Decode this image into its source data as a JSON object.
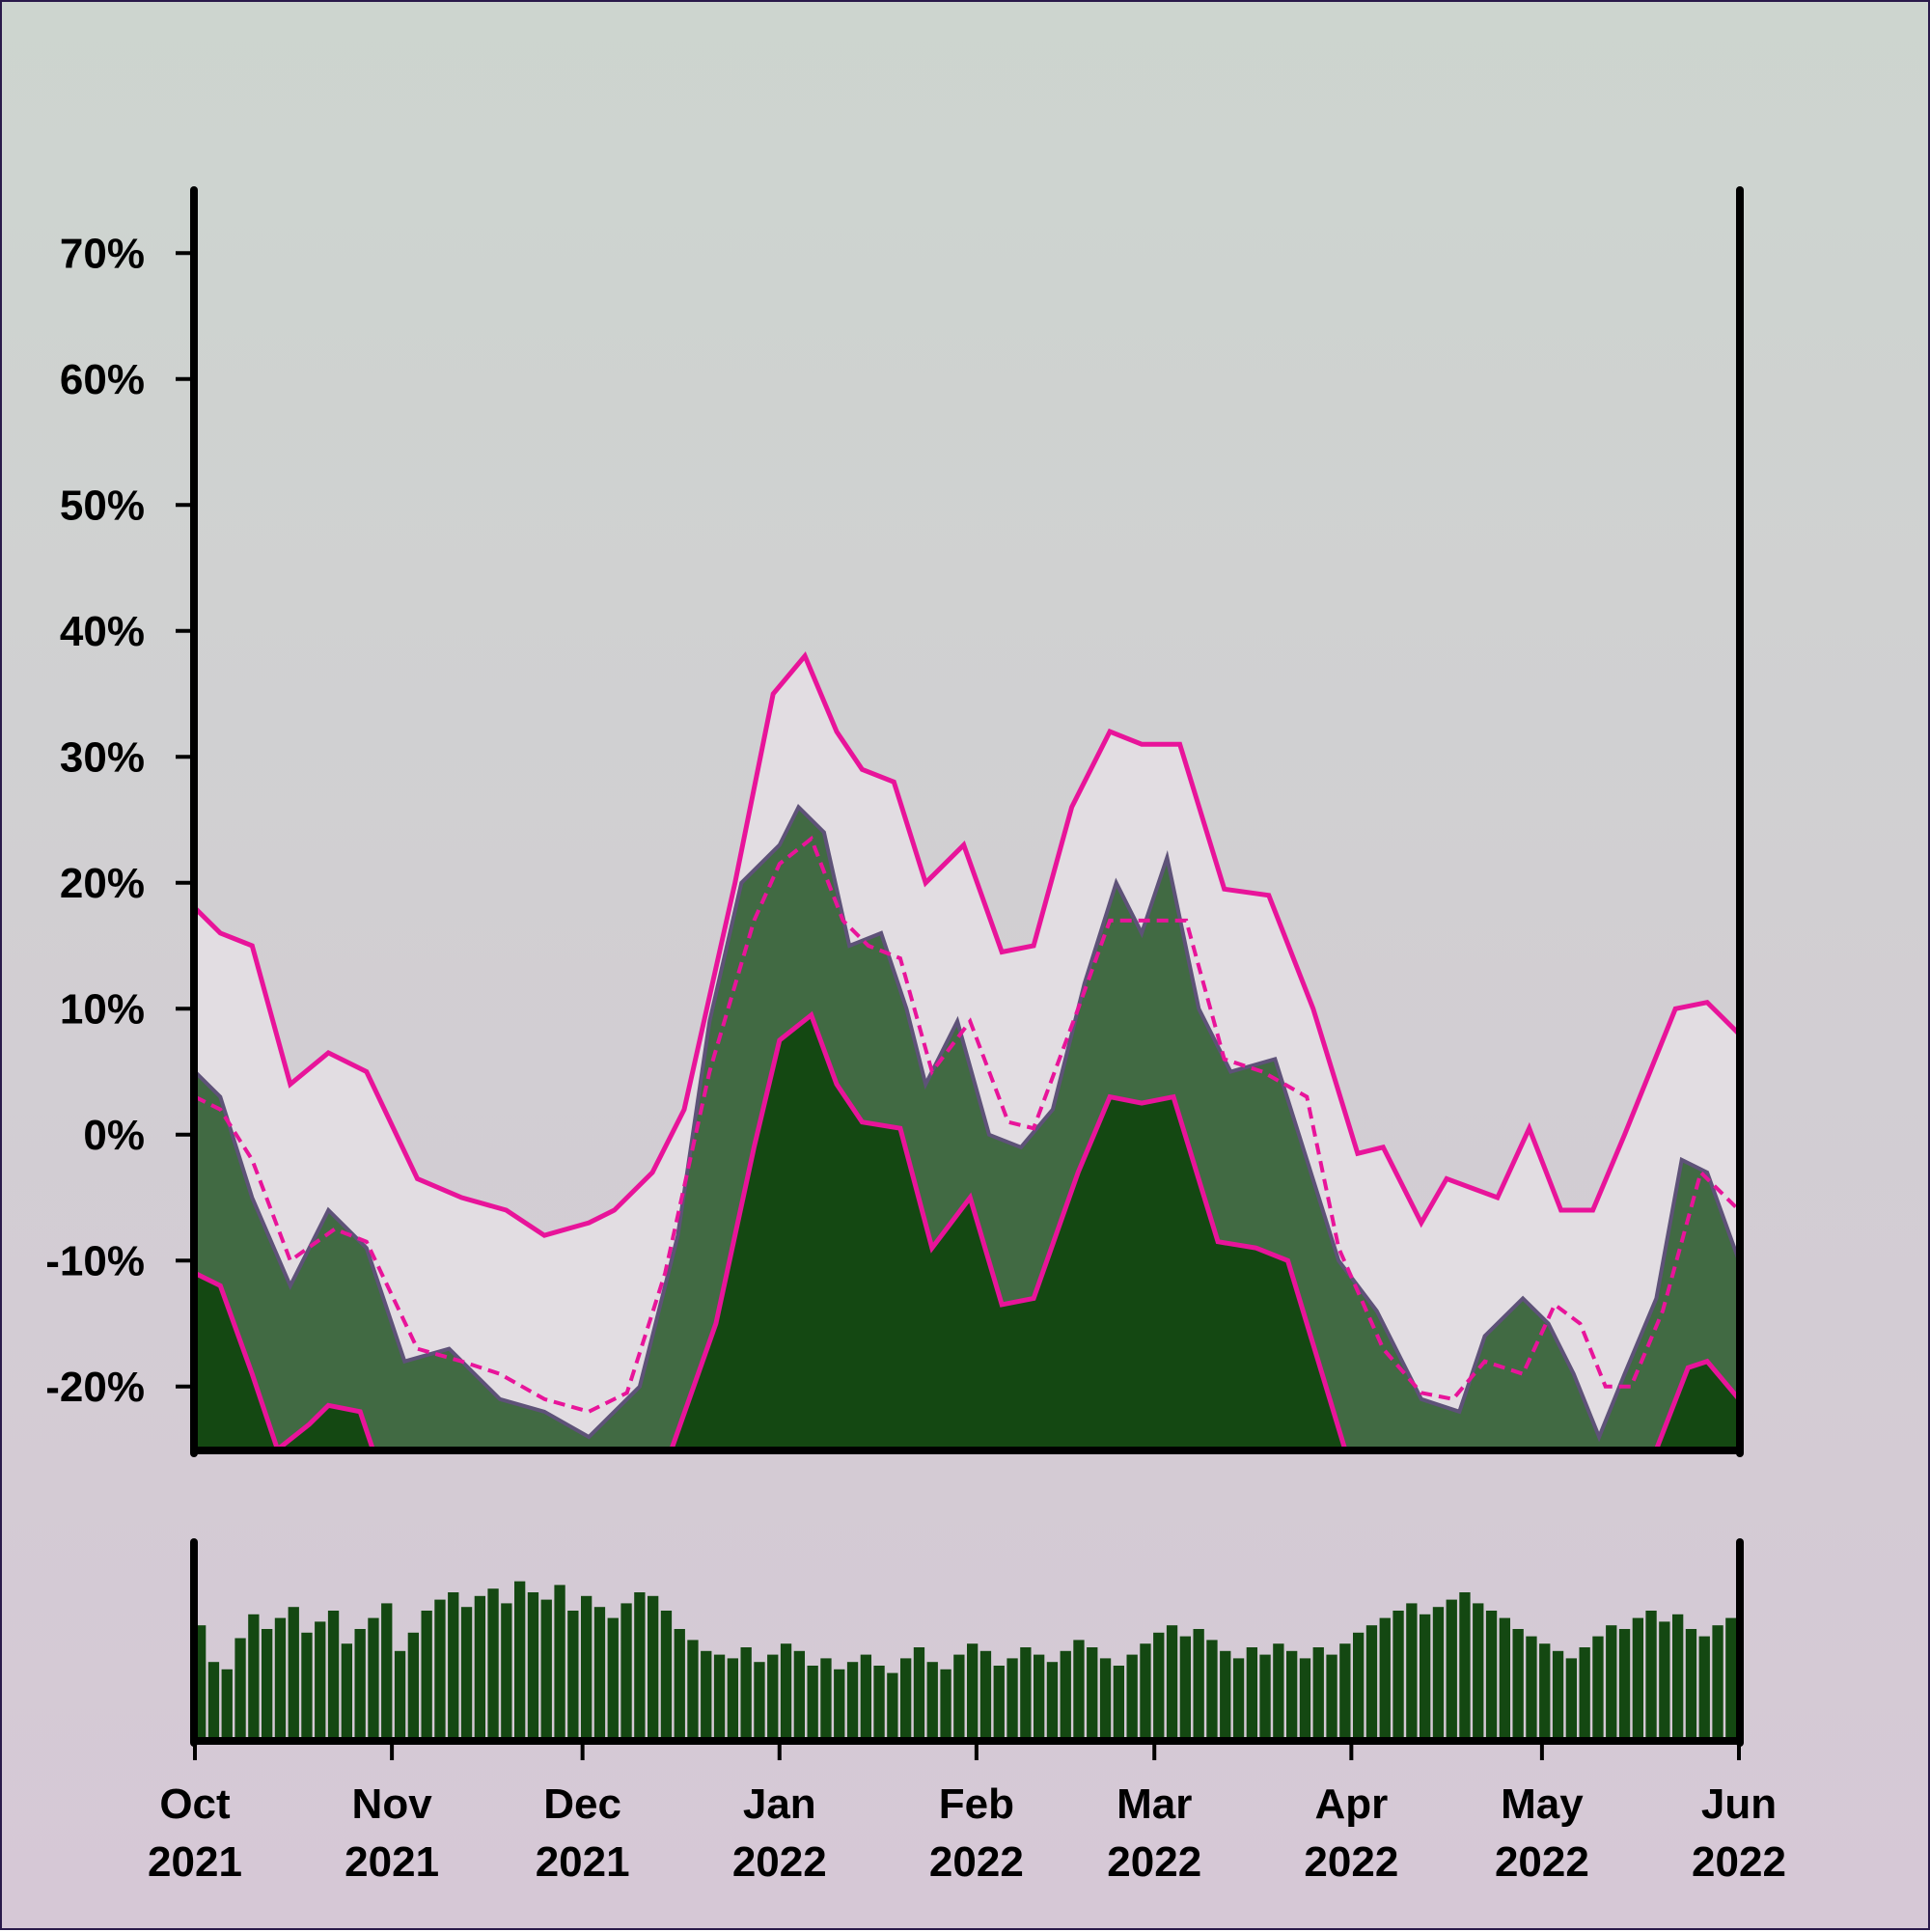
{
  "colors": {
    "band_fill": "#e2dde2",
    "area_fill": "#416a43",
    "price_line": "#5e5278",
    "dark_fill": "#144812",
    "band_line": "#e8149a",
    "volume_bar": "#144812",
    "axis": "#000000"
  },
  "chart_data": {
    "type": "area",
    "title": "",
    "xlabel": "",
    "ylabel": "",
    "x_range": [
      "2021-10-01",
      "2022-06-01"
    ],
    "ylim": [
      -25,
      75
    ],
    "y_ticks": [
      {
        "value": 70,
        "label": "70%"
      },
      {
        "value": 60,
        "label": "60%"
      },
      {
        "value": 50,
        "label": "50%"
      },
      {
        "value": 40,
        "label": "40%"
      },
      {
        "value": 30,
        "label": "30%"
      },
      {
        "value": 20,
        "label": "20%"
      },
      {
        "value": 10,
        "label": "10%"
      },
      {
        "value": 0,
        "label": "0%"
      },
      {
        "value": -10,
        "label": "-10%"
      },
      {
        "value": -20,
        "label": "-20%"
      }
    ],
    "x_ticks": [
      {
        "date": "2021-10-01",
        "month": "Oct",
        "year": "2021"
      },
      {
        "date": "2021-11-01",
        "month": "Nov",
        "year": "2021"
      },
      {
        "date": "2021-12-01",
        "month": "Dec",
        "year": "2021"
      },
      {
        "date": "2022-01-01",
        "month": "Jan",
        "year": "2022"
      },
      {
        "date": "2022-02-01",
        "month": "Feb",
        "year": "2022"
      },
      {
        "date": "2022-03-01",
        "month": "Mar",
        "year": "2022"
      },
      {
        "date": "2022-04-01",
        "month": "Apr",
        "year": "2022"
      },
      {
        "date": "2022-05-01",
        "month": "May",
        "year": "2022"
      },
      {
        "date": "2022-06-01",
        "month": "Jun",
        "year": "2022"
      }
    ],
    "series": [
      {
        "role": "price",
        "points": [
          [
            "2021-10-01",
            5
          ],
          [
            "2021-10-05",
            3
          ],
          [
            "2021-10-10",
            -5
          ],
          [
            "2021-10-16",
            -12
          ],
          [
            "2021-10-22",
            -6
          ],
          [
            "2021-10-28",
            -9
          ],
          [
            "2021-11-03",
            -18
          ],
          [
            "2021-11-10",
            -17
          ],
          [
            "2021-11-18",
            -21
          ],
          [
            "2021-11-25",
            -22
          ],
          [
            "2021-12-02",
            -24
          ],
          [
            "2021-12-10",
            -20
          ],
          [
            "2021-12-16",
            -8
          ],
          [
            "2021-12-21",
            9
          ],
          [
            "2021-12-26",
            20
          ],
          [
            "2022-01-01",
            23
          ],
          [
            "2022-01-04",
            26
          ],
          [
            "2022-01-08",
            24
          ],
          [
            "2022-01-12",
            15
          ],
          [
            "2022-01-17",
            16
          ],
          [
            "2022-01-21",
            10
          ],
          [
            "2022-01-24",
            4
          ],
          [
            "2022-01-29",
            9
          ],
          [
            "2022-02-03",
            0
          ],
          [
            "2022-02-08",
            -1
          ],
          [
            "2022-02-13",
            2
          ],
          [
            "2022-02-18",
            12
          ],
          [
            "2022-02-23",
            20
          ],
          [
            "2022-02-27",
            16
          ],
          [
            "2022-03-03",
            22
          ],
          [
            "2022-03-08",
            10
          ],
          [
            "2022-03-13",
            5
          ],
          [
            "2022-03-20",
            6
          ],
          [
            "2022-03-25",
            -2
          ],
          [
            "2022-03-30",
            -10
          ],
          [
            "2022-04-05",
            -14
          ],
          [
            "2022-04-12",
            -21
          ],
          [
            "2022-04-18",
            -22
          ],
          [
            "2022-04-22",
            -16
          ],
          [
            "2022-04-28",
            -13
          ],
          [
            "2022-05-02",
            -15
          ],
          [
            "2022-05-06",
            -19
          ],
          [
            "2022-05-10",
            -24
          ],
          [
            "2022-05-14",
            -19
          ],
          [
            "2022-05-19",
            -13
          ],
          [
            "2022-05-23",
            -2
          ],
          [
            "2022-05-27",
            -3
          ],
          [
            "2022-06-01",
            -10
          ]
        ]
      },
      {
        "role": "band-middle",
        "points": [
          [
            "2021-10-01",
            3
          ],
          [
            "2021-10-05",
            2
          ],
          [
            "2021-10-10",
            -2
          ],
          [
            "2021-10-16",
            -10
          ],
          [
            "2021-10-23",
            -7.5
          ],
          [
            "2021-10-28",
            -8.5
          ],
          [
            "2021-11-05",
            -17
          ],
          [
            "2021-11-12",
            -18
          ],
          [
            "2021-11-18",
            -19
          ],
          [
            "2021-11-25",
            -21
          ],
          [
            "2021-12-02",
            -22
          ],
          [
            "2021-12-08",
            -20.5
          ],
          [
            "2021-12-14",
            -11
          ],
          [
            "2021-12-21",
            5
          ],
          [
            "2021-12-28",
            17
          ],
          [
            "2022-01-01",
            21.5
          ],
          [
            "2022-01-06",
            23.5
          ],
          [
            "2022-01-11",
            17
          ],
          [
            "2022-01-15",
            15
          ],
          [
            "2022-01-20",
            14
          ],
          [
            "2022-01-25",
            5
          ],
          [
            "2022-01-31",
            9
          ],
          [
            "2022-02-06",
            1
          ],
          [
            "2022-02-10",
            0.5
          ],
          [
            "2022-02-17",
            10
          ],
          [
            "2022-02-22",
            17
          ],
          [
            "2022-02-27",
            17
          ],
          [
            "2022-03-06",
            17
          ],
          [
            "2022-03-12",
            6
          ],
          [
            "2022-03-18",
            5
          ],
          [
            "2022-03-25",
            3
          ],
          [
            "2022-03-30",
            -9
          ],
          [
            "2022-04-06",
            -17
          ],
          [
            "2022-04-12",
            -20.5
          ],
          [
            "2022-04-17",
            -21
          ],
          [
            "2022-04-22",
            -18
          ],
          [
            "2022-04-28",
            -19
          ],
          [
            "2022-05-03",
            -13.5
          ],
          [
            "2022-05-07",
            -15
          ],
          [
            "2022-05-11",
            -20
          ],
          [
            "2022-05-15",
            -20
          ],
          [
            "2022-05-20",
            -14
          ],
          [
            "2022-05-26",
            -3
          ],
          [
            "2022-06-01",
            -6
          ]
        ]
      },
      {
        "role": "band-upper",
        "points": [
          [
            "2021-10-01",
            18
          ],
          [
            "2021-10-05",
            16
          ],
          [
            "2021-10-10",
            15
          ],
          [
            "2021-10-16",
            4
          ],
          [
            "2021-10-22",
            6.5
          ],
          [
            "2021-10-28",
            5
          ],
          [
            "2021-11-05",
            -3.5
          ],
          [
            "2021-11-12",
            -5
          ],
          [
            "2021-11-19",
            -6
          ],
          [
            "2021-11-25",
            -8
          ],
          [
            "2021-12-02",
            -7
          ],
          [
            "2021-12-06",
            -6
          ],
          [
            "2021-12-12",
            -3
          ],
          [
            "2021-12-17",
            2
          ],
          [
            "2021-12-25",
            20
          ],
          [
            "2021-12-31",
            35
          ],
          [
            "2022-01-05",
            38
          ],
          [
            "2022-01-10",
            32
          ],
          [
            "2022-01-14",
            29
          ],
          [
            "2022-01-19",
            28
          ],
          [
            "2022-01-24",
            20
          ],
          [
            "2022-01-30",
            23
          ],
          [
            "2022-02-05",
            14.5
          ],
          [
            "2022-02-10",
            15
          ],
          [
            "2022-02-16",
            26
          ],
          [
            "2022-02-22",
            32
          ],
          [
            "2022-02-27",
            31
          ],
          [
            "2022-03-05",
            31
          ],
          [
            "2022-03-12",
            19.5
          ],
          [
            "2022-03-19",
            19
          ],
          [
            "2022-03-26",
            10
          ],
          [
            "2022-04-02",
            -1.5
          ],
          [
            "2022-04-06",
            -1
          ],
          [
            "2022-04-12",
            -7
          ],
          [
            "2022-04-16",
            -3.5
          ],
          [
            "2022-04-24",
            -5
          ],
          [
            "2022-04-29",
            0.5
          ],
          [
            "2022-05-04",
            -6
          ],
          [
            "2022-05-09",
            -6
          ],
          [
            "2022-05-14",
            0
          ],
          [
            "2022-05-22",
            10
          ],
          [
            "2022-05-27",
            10.5
          ],
          [
            "2022-06-01",
            8
          ]
        ]
      },
      {
        "role": "band-lower",
        "points": [
          [
            "2021-10-01",
            -11
          ],
          [
            "2021-10-05",
            -12
          ],
          [
            "2021-10-10",
            -19
          ],
          [
            "2021-10-14",
            -25
          ],
          [
            "2021-10-19",
            -23
          ],
          [
            "2021-10-22",
            -21.5
          ],
          [
            "2021-10-27",
            -22
          ],
          [
            "2021-10-29",
            -25
          ],
          [
            "2021-12-15",
            -25
          ],
          [
            "2021-12-22",
            -15
          ],
          [
            "2021-12-28",
            -1
          ],
          [
            "2022-01-01",
            7.5
          ],
          [
            "2022-01-06",
            9.5
          ],
          [
            "2022-01-10",
            4
          ],
          [
            "2022-01-14",
            1
          ],
          [
            "2022-01-20",
            0.5
          ],
          [
            "2022-01-25",
            -9
          ],
          [
            "2022-01-31",
            -5
          ],
          [
            "2022-02-05",
            -13.5
          ],
          [
            "2022-02-10",
            -13
          ],
          [
            "2022-02-17",
            -3
          ],
          [
            "2022-02-22",
            3
          ],
          [
            "2022-02-27",
            2.5
          ],
          [
            "2022-03-04",
            3
          ],
          [
            "2022-03-11",
            -8.5
          ],
          [
            "2022-03-17",
            -9
          ],
          [
            "2022-03-22",
            -10
          ],
          [
            "2022-03-31",
            -25
          ],
          [
            "2022-05-19",
            -25
          ],
          [
            "2022-05-24",
            -18.5
          ],
          [
            "2022-05-27",
            -18
          ],
          [
            "2022-06-01",
            -21
          ]
        ]
      }
    ],
    "volume": [
      0.62,
      0.42,
      0.38,
      0.55,
      0.68,
      0.6,
      0.66,
      0.72,
      0.58,
      0.64,
      0.7,
      0.52,
      0.6,
      0.66,
      0.74,
      0.48,
      0.58,
      0.7,
      0.76,
      0.8,
      0.72,
      0.78,
      0.82,
      0.74,
      0.86,
      0.8,
      0.76,
      0.84,
      0.7,
      0.78,
      0.72,
      0.66,
      0.74,
      0.8,
      0.78,
      0.7,
      0.6,
      0.54,
      0.48,
      0.46,
      0.44,
      0.5,
      0.42,
      0.46,
      0.52,
      0.48,
      0.4,
      0.44,
      0.38,
      0.42,
      0.46,
      0.4,
      0.36,
      0.44,
      0.5,
      0.42,
      0.38,
      0.46,
      0.52,
      0.48,
      0.4,
      0.44,
      0.5,
      0.46,
      0.42,
      0.48,
      0.54,
      0.5,
      0.44,
      0.4,
      0.46,
      0.52,
      0.58,
      0.62,
      0.56,
      0.6,
      0.54,
      0.48,
      0.44,
      0.5,
      0.46,
      0.52,
      0.48,
      0.44,
      0.5,
      0.46,
      0.52,
      0.58,
      0.62,
      0.66,
      0.7,
      0.74,
      0.68,
      0.72,
      0.76,
      0.8,
      0.74,
      0.7,
      0.66,
      0.6,
      0.56,
      0.52,
      0.48,
      0.44,
      0.5,
      0.56,
      0.62,
      0.6,
      0.66,
      0.7,
      0.64,
      0.68,
      0.6,
      0.56,
      0.62,
      0.66
    ]
  }
}
